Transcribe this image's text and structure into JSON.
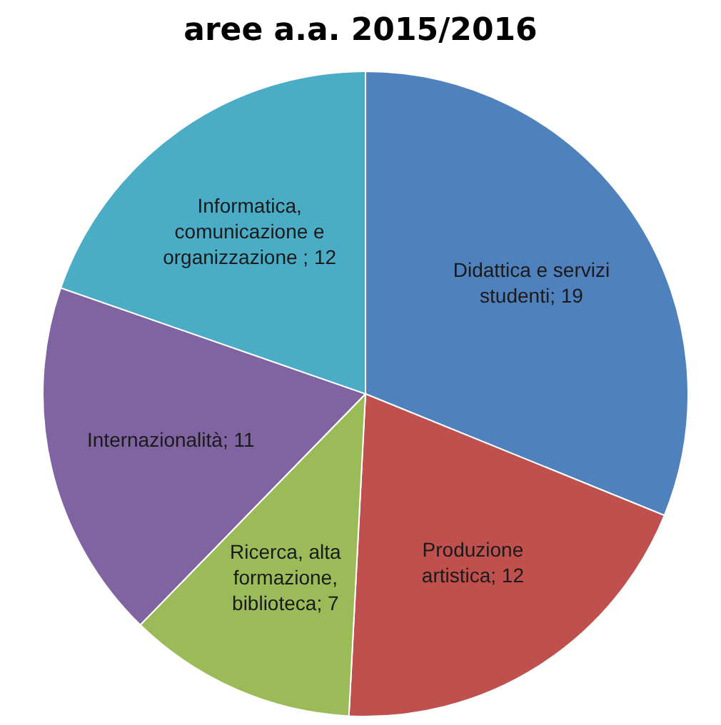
{
  "chart_data": {
    "type": "pie",
    "title": "aree a.a. 2015/2016",
    "categories": [
      "Didattica e servizi studenti",
      "Produzione artistica",
      "Ricerca, alta formazione, biblioteca",
      "Internazionalità",
      "Informatica, comunicazione e organizzazione "
    ],
    "values": [
      19,
      12,
      7,
      11,
      12
    ],
    "colors": [
      "#4f81bd",
      "#c0504d",
      "#9bbb59",
      "#8064a2",
      "#4bacc6"
    ],
    "value_labels": [
      "; 19",
      "; 12",
      "; 7",
      "; 11",
      "; 12"
    ]
  }
}
